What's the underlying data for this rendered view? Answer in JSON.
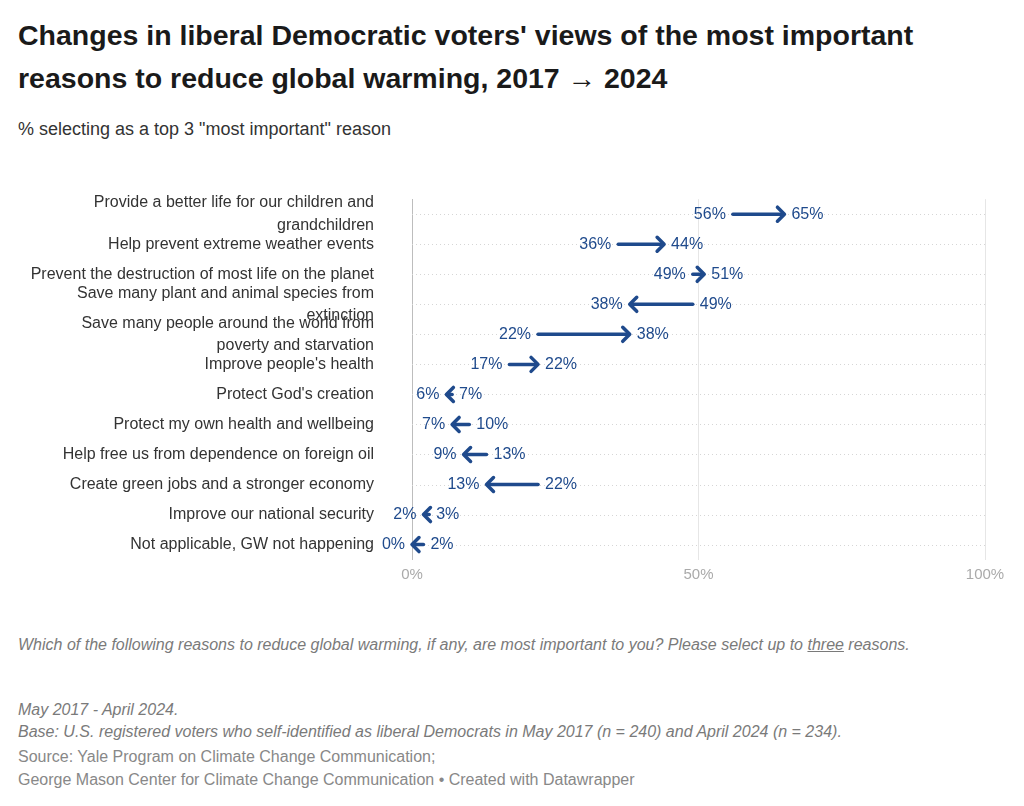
{
  "chart_data": {
    "type": "arrow",
    "orientation": "horizontal",
    "title": "Changes in liberal Democratic voters' views of the most important reasons to reduce global warming, 2017 → 2024",
    "subtitle": "% selecting as a top 3 \"most important\" reason",
    "categories": [
      "Provide a better life for our children and grandchildren",
      "Help prevent extreme weather events",
      "Prevent the destruction of most life on the planet",
      "Save many plant and animal species from extinction",
      "Save many people around the world from poverty and starvation",
      "Improve people's health",
      "Protect God's creation",
      "Protect my own health and wellbeing",
      "Help free us from dependence on foreign oil",
      "Create green jobs and a stronger economy",
      "Improve our national security",
      "Not applicable, GW not happening"
    ],
    "series": [
      {
        "name": "2017",
        "values": [
          56,
          36,
          49,
          49,
          22,
          17,
          7,
          10,
          13,
          22,
          3,
          2
        ],
        "value_labels": [
          "56%",
          "36%",
          "49%",
          "49%",
          "22%",
          "17%",
          "7%",
          "10%",
          "13%",
          "22%",
          "3%",
          "2%"
        ]
      },
      {
        "name": "2024",
        "values": [
          65,
          44,
          51,
          38,
          38,
          22,
          6,
          7,
          9,
          13,
          2,
          0
        ],
        "value_labels": [
          "65%",
          "44%",
          "51%",
          "38%",
          "38%",
          "22%",
          "6%",
          "7%",
          "9%",
          "13%",
          "2%",
          "0%"
        ]
      }
    ],
    "color": "#1f4a8c",
    "xlim": [
      0,
      100
    ],
    "xticks": [
      {
        "value": 0,
        "label": "0%"
      },
      {
        "value": 50,
        "label": "50%"
      },
      {
        "value": 100,
        "label": "100%"
      }
    ],
    "grid": true,
    "data_labels": true,
    "question": [
      "Which of the following reasons to reduce global warming, if any, are most important to you? Please select up to ",
      "three",
      " reasons."
    ],
    "notes": [
      "May 2017 - April 2024.",
      "Base: U.S. registered voters who self-identified as liberal Democrats in May 2017 (n = 240) and April 2024 (n = 234)."
    ],
    "source": [
      "Source: Yale Program on Climate Change Communication;",
      "George Mason Center for Climate Change Communication",
      "• Created with Datawrapper"
    ]
  }
}
